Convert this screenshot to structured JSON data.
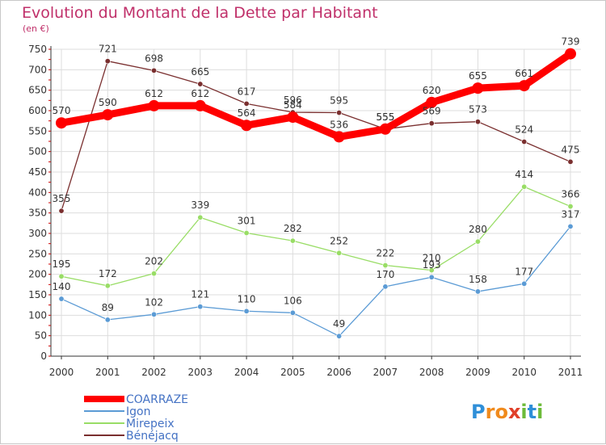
{
  "chart_data": {
    "type": "line",
    "title": "Evolution du Montant de la Dette par Habitant",
    "subtitle": "(en €)",
    "xlabel": "",
    "ylabel": "",
    "ylim": [
      0,
      750
    ],
    "yticks": [
      0,
      50,
      100,
      150,
      200,
      250,
      300,
      350,
      400,
      450,
      500,
      550,
      600,
      650,
      700,
      750
    ],
    "categories": [
      "2000",
      "2001",
      "2002",
      "2003",
      "2004",
      "2005",
      "2006",
      "2007",
      "2008",
      "2009",
      "2010",
      "2011"
    ],
    "grid": true,
    "legend_position": "bottom-left",
    "series": [
      {
        "name": "COARRAZE",
        "color": "#ff0000",
        "values": [
          570,
          590,
          612,
          612,
          564,
          584,
          536,
          555,
          620,
          655,
          661,
          739
        ]
      },
      {
        "name": "Igon",
        "color": "#5b9bd5",
        "values": [
          140,
          89,
          102,
          121,
          110,
          106,
          49,
          170,
          193,
          158,
          177,
          317
        ]
      },
      {
        "name": "Mirepeix",
        "color": "#99dd66",
        "values": [
          195,
          172,
          202,
          339,
          301,
          282,
          252,
          222,
          210,
          280,
          414,
          366
        ]
      },
      {
        "name": "Bénéjacq",
        "color": "#7a2f2f",
        "values": [
          355,
          721,
          698,
          665,
          617,
          596,
          595,
          555,
          569,
          573,
          524,
          475
        ]
      }
    ]
  },
  "logo": {
    "text": "Proxiti",
    "letters": [
      {
        "ch": "P",
        "color": "#2f8fd8"
      },
      {
        "ch": "r",
        "color": "#f08a1c"
      },
      {
        "ch": "o",
        "color": "#f08a1c"
      },
      {
        "ch": "x",
        "color": "#e0402a"
      },
      {
        "ch": "i",
        "color": "#6dbb3a"
      },
      {
        "ch": "t",
        "color": "#2f8fd8"
      },
      {
        "ch": "i",
        "color": "#6dbb3a"
      }
    ]
  }
}
